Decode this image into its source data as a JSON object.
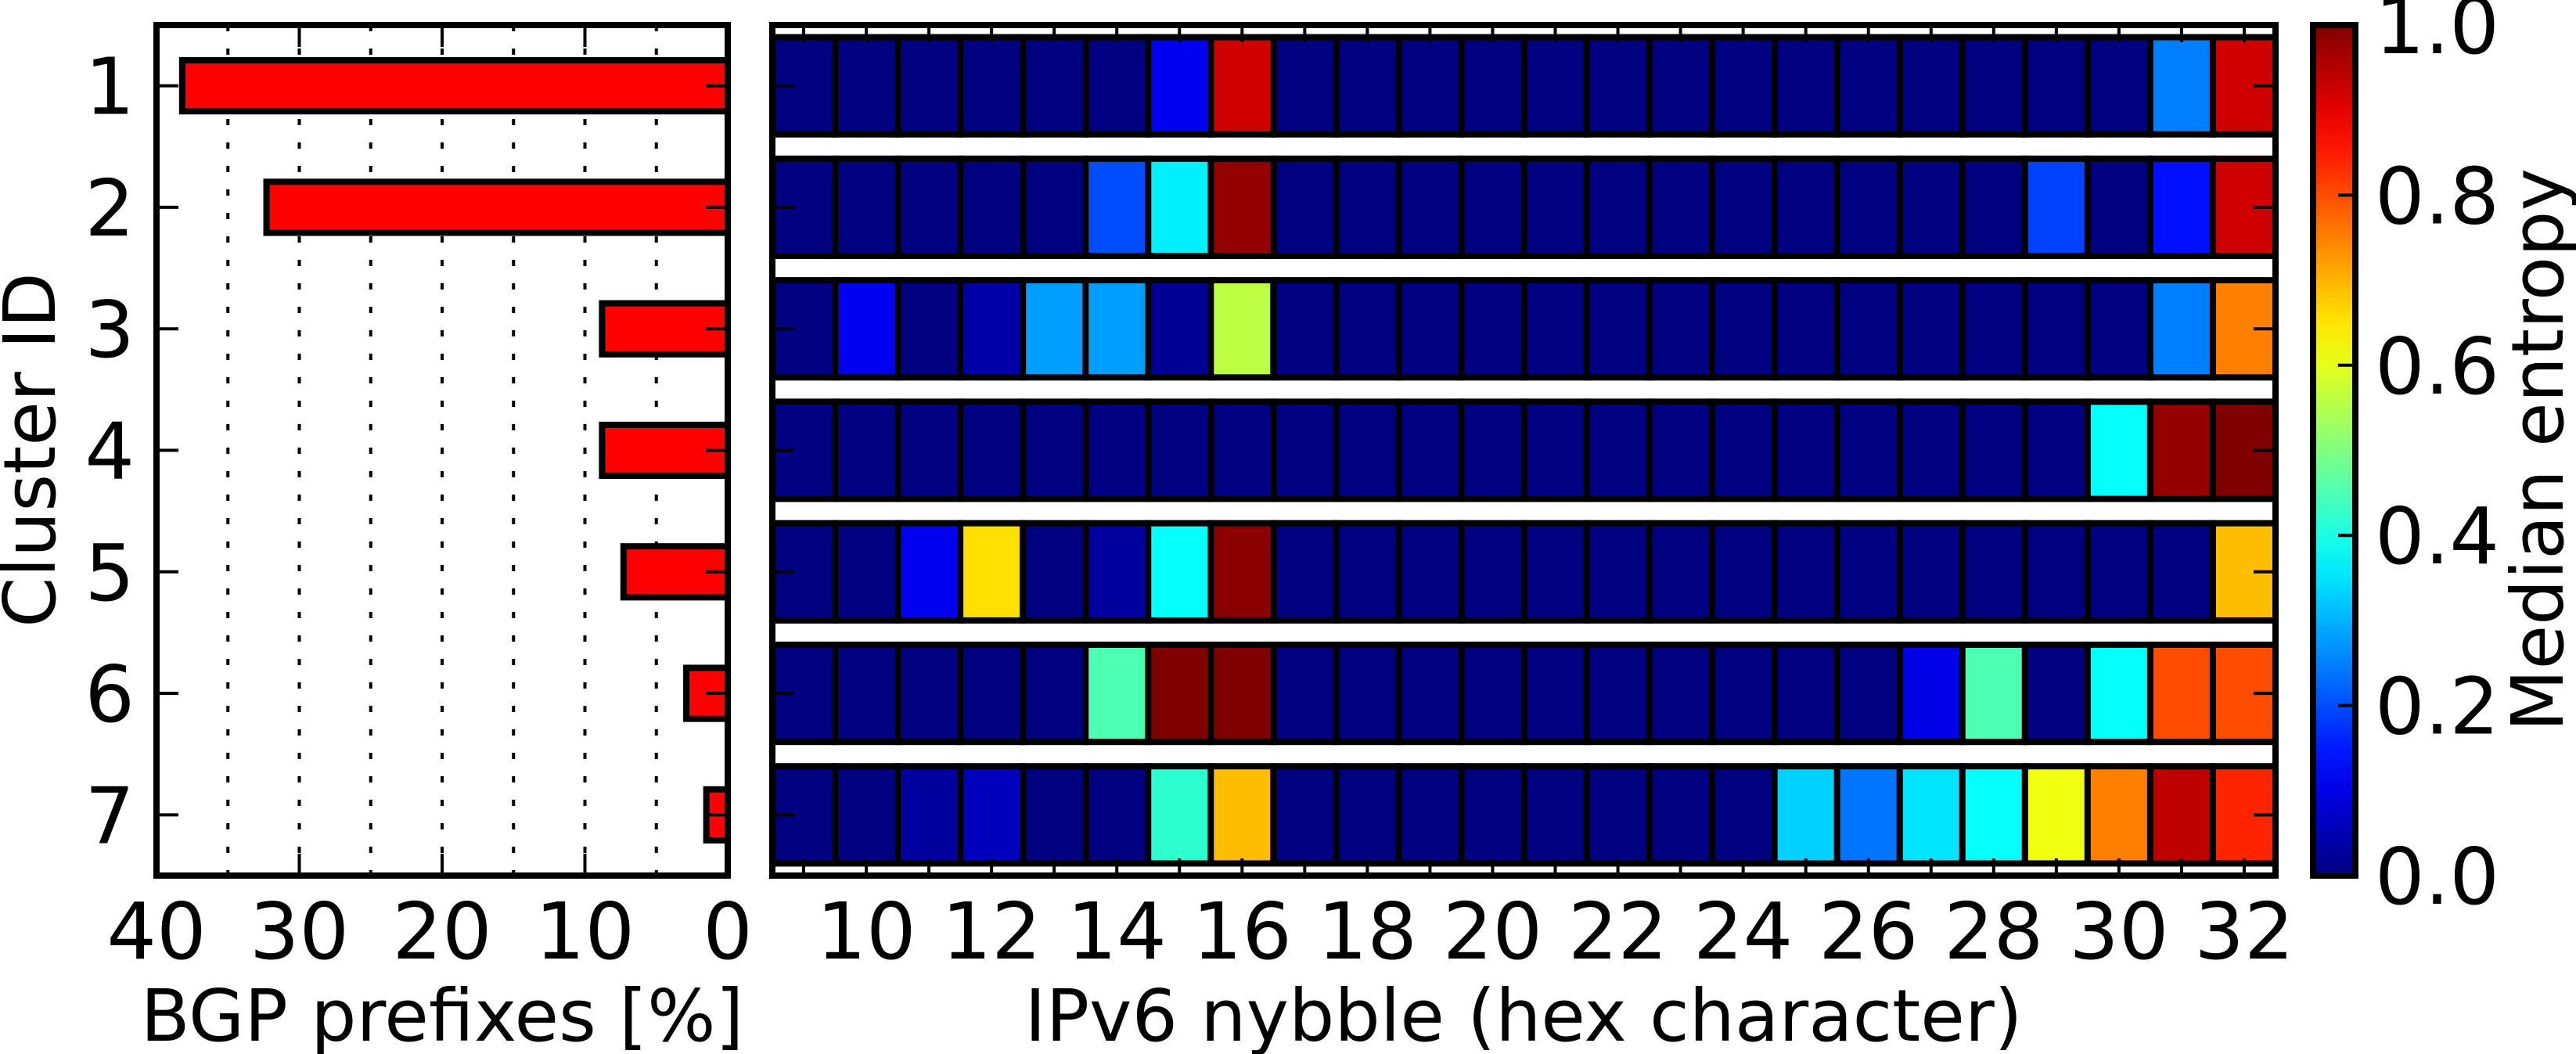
{
  "chart_data": [
    {
      "type": "bar",
      "orientation": "horizontal",
      "title": "",
      "xlabel": "BGP prefixes [%]",
      "ylabel": "Cluster ID",
      "categories": [
        "1",
        "2",
        "3",
        "4",
        "5",
        "6",
        "7"
      ],
      "values": [
        38.2,
        32.3,
        8.8,
        8.8,
        7.3,
        2.9,
        1.5
      ],
      "xlim": [
        40,
        0
      ],
      "xticks": [
        "40",
        "30",
        "20",
        "10",
        "0"
      ],
      "xtick_values": [
        40,
        30,
        20,
        10,
        0
      ],
      "grid_x_values": [
        5,
        10,
        15,
        20,
        25,
        30,
        35
      ],
      "grid": "vertical dotted",
      "bar_color": "#ff0000"
    },
    {
      "type": "heatmap",
      "title": "",
      "xlabel": "IPv6 nybble (hex character)",
      "x": [
        9,
        10,
        11,
        12,
        13,
        14,
        15,
        16,
        17,
        18,
        19,
        20,
        21,
        22,
        23,
        24,
        25,
        26,
        27,
        28,
        29,
        30,
        31,
        32
      ],
      "xticks": [
        "10",
        "12",
        "14",
        "16",
        "18",
        "20",
        "22",
        "24",
        "26",
        "28",
        "30",
        "32"
      ],
      "xtick_values": [
        10,
        12,
        14,
        16,
        18,
        20,
        22,
        24,
        26,
        28,
        30,
        32
      ],
      "rows": [
        [
          0,
          0,
          0,
          0,
          0,
          0,
          0.11,
          0.92,
          0,
          0,
          0,
          0,
          0,
          0,
          0,
          0,
          0,
          0,
          0,
          0,
          0,
          0,
          0.25,
          0.92
        ],
        [
          0,
          0,
          0,
          0,
          0,
          0.2,
          0.36,
          0.98,
          0,
          0,
          0,
          0,
          0,
          0,
          0,
          0,
          0,
          0,
          0,
          0,
          0.19,
          0,
          0.14,
          0.92
        ],
        [
          0,
          0.11,
          0,
          0.04,
          0.28,
          0.28,
          0.02,
          0.56,
          0,
          0,
          0,
          0,
          0,
          0,
          0,
          0,
          0,
          0,
          0,
          0,
          0,
          0,
          0.25,
          0.75
        ],
        [
          0,
          0,
          0,
          0,
          0,
          0,
          0,
          0,
          0,
          0,
          0,
          0,
          0,
          0,
          0,
          0,
          0,
          0,
          0,
          0,
          0,
          0.38,
          0.98,
          1.0
        ],
        [
          0,
          0,
          0.11,
          0.655,
          0,
          0.03,
          0.38,
          0.99,
          0,
          0,
          0,
          0,
          0,
          0,
          0,
          0,
          0,
          0,
          0,
          0,
          0,
          0,
          0,
          0.69
        ],
        [
          0,
          0,
          0,
          0,
          0,
          0.45,
          1.0,
          1.0,
          0,
          0,
          0,
          0,
          0,
          0,
          0,
          0,
          0,
          0,
          0.1,
          0.45,
          0,
          0.38,
          0.8,
          0.8
        ],
        [
          0,
          0,
          0.03,
          0.06,
          0,
          0,
          0.42,
          0.69,
          0,
          0,
          0,
          0,
          0,
          0,
          0,
          0,
          0.33,
          0.24,
          0.35,
          0.38,
          0.61,
          0.75,
          0.94,
          0.84
        ]
      ],
      "colormap": "jet",
      "colorbar": {
        "label": "Median entropy",
        "range": [
          0,
          1
        ],
        "ticks": [
          "0.0",
          "0.2",
          "0.4",
          "0.6",
          "0.8",
          "1.0"
        ],
        "tick_values": [
          0,
          0.2,
          0.4,
          0.6,
          0.8,
          1.0
        ]
      }
    }
  ]
}
